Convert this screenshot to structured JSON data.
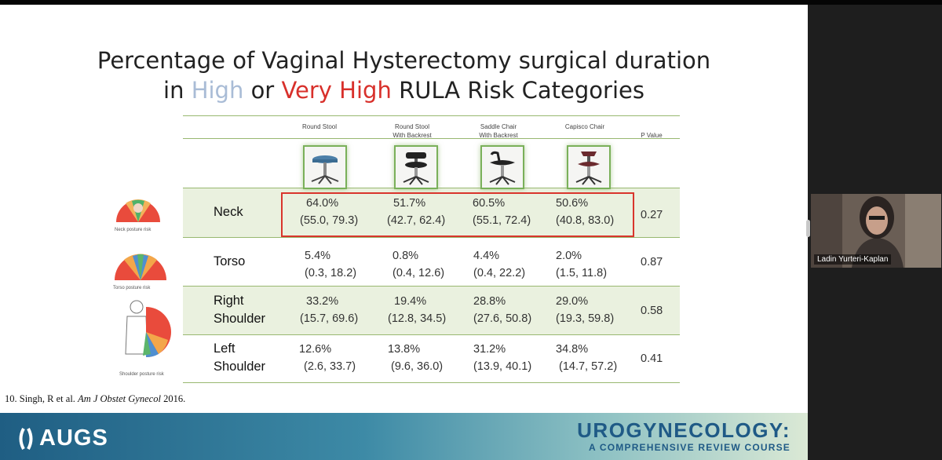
{
  "slide": {
    "title_line1": "Percentage of Vaginal Hysterectomy surgical duration",
    "title_in": "in",
    "title_high": "High",
    "title_or": "or",
    "title_very_high": "Very High",
    "title_end": "RULA Risk Categories",
    "high_color": "#a9bcd6",
    "very_high_color": "#d8302b",
    "columns": [
      {
        "line1": "",
        "line2": "Round Stool"
      },
      {
        "line1": "Round Stool",
        "line2": "With Backrest"
      },
      {
        "line1": "Saddle Chair",
        "line2": "With Backrest"
      },
      {
        "line1": "",
        "line2": "Capisco Chair"
      }
    ],
    "pvalue_header": "P Value",
    "rows": [
      {
        "label1": "Neck",
        "label2": "",
        "cells": [
          {
            "pct": "64.0%",
            "ci": "(55.0, 79.3)"
          },
          {
            "pct": "51.7%",
            "ci": "(42.7, 62.4)"
          },
          {
            "pct": "60.5%",
            "ci": "(55.1, 72.4)"
          },
          {
            "pct": "50.6%",
            "ci": "(40.8, 83.0)"
          }
        ],
        "p": "0.27"
      },
      {
        "label1": "Torso",
        "label2": "",
        "cells": [
          {
            "pct": "5.4%",
            "ci": "(0.3, 18.2)"
          },
          {
            "pct": "0.8%",
            "ci": "(0.4, 12.6)"
          },
          {
            "pct": "4.4%",
            "ci": "(0.4, 22.2)"
          },
          {
            "pct": "2.0%",
            "ci": "(1.5, 11.8)"
          }
        ],
        "p": "0.87"
      },
      {
        "label1": "Right",
        "label2": "Shoulder",
        "cells": [
          {
            "pct": "33.2%",
            "ci": "(15.7, 69.6)"
          },
          {
            "pct": "19.4%",
            "ci": "(12.8, 34.5)"
          },
          {
            "pct": "28.8%",
            "ci": "(27.6, 50.8)"
          },
          {
            "pct": "29.0%",
            "ci": "(19.3, 59.8)"
          }
        ],
        "p": "0.58"
      },
      {
        "label1": "Left",
        "label2": "Shoulder",
        "cells": [
          {
            "pct": "12.6%",
            "ci": "(2.6, 33.7)"
          },
          {
            "pct": "13.8%",
            "ci": "(9.6, 36.0)"
          },
          {
            "pct": "31.2%",
            "ci": "(13.9, 40.1)"
          },
          {
            "pct": "34.8%",
            "ci": "(14.7, 57.2)"
          }
        ],
        "p": "0.41"
      }
    ],
    "diagram_captions": {
      "neck": "Neck posture risk",
      "torso": "Torso posture risk",
      "shoulder": "Shoulder posture risk"
    },
    "citation": {
      "prefix": "10. Singh, R et al.",
      "journal": "Am J Obstet Gynecol",
      "year": "2016."
    },
    "banner": {
      "org": "AUGS",
      "course_title": "UROGYNECOLOGY:",
      "course_subtitle": "A COMPREHENSIVE REVIEW COURSE"
    }
  },
  "participant": {
    "name": "Ladin Yurteri-Kaplan"
  }
}
